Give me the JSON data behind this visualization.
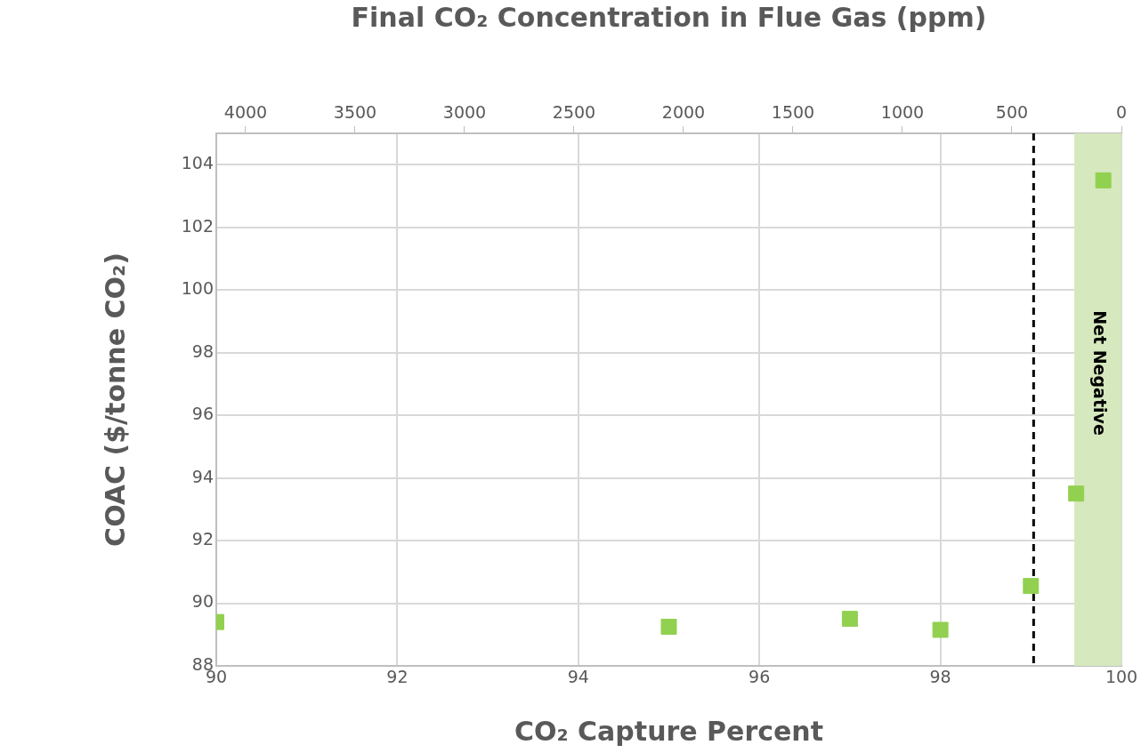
{
  "chart_data": {
    "type": "scatter",
    "xlabel": "CO₂ Capture Percent",
    "ylabel": "COAC ($/tonne CO₂)",
    "x2label": "Final CO₂ Concentration in Flue Gas (ppm)",
    "x": [
      90,
      95,
      97,
      98,
      99,
      99.5,
      99.8
    ],
    "series": [
      {
        "color": "#92d050",
        "values": [
          89.4,
          89.25,
          89.5,
          89.15,
          90.55,
          93.5,
          103.5
        ]
      }
    ],
    "marker": "square",
    "grid": true,
    "legend": false,
    "xlim": [
      90,
      100
    ],
    "xticks": [
      90,
      92,
      94,
      96,
      98,
      100
    ],
    "x2lim": [
      4134,
      0
    ],
    "x2ticks": [
      4000,
      3500,
      3000,
      2500,
      2000,
      1500,
      1000,
      500,
      0
    ],
    "ylim": [
      88,
      105
    ],
    "yticks": [
      88,
      90,
      92,
      94,
      96,
      98,
      100,
      102,
      104
    ],
    "ref_lines": [
      {
        "axis": "x",
        "value": 99.03,
        "color": "#000000",
        "line_style": "dashed"
      }
    ],
    "bands": [
      {
        "axis": "x",
        "from": 99.48,
        "to": 100,
        "label": "Net Negative",
        "color": "#d6e8bd"
      }
    ]
  }
}
